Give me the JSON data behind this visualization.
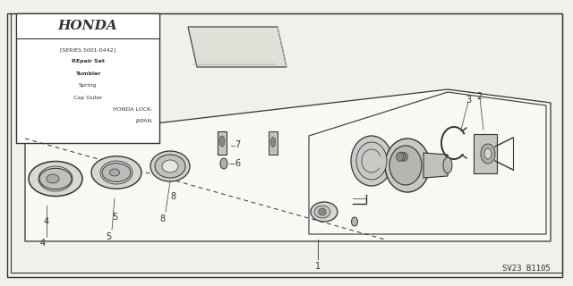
{
  "bg_color": "#f0f0ec",
  "line_color": "#333333",
  "part_number": "SV23 B1105",
  "honda_lines": [
    "[SERIES 5001-0442]",
    "REpair Set",
    "Tumbler",
    "Spring",
    "Cap Outer",
    "HONDA LOCK-",
    "JAPAN"
  ],
  "honda_bold": [
    1,
    2
  ],
  "fig_w": 6.4,
  "fig_h": 3.2,
  "dpi": 100
}
